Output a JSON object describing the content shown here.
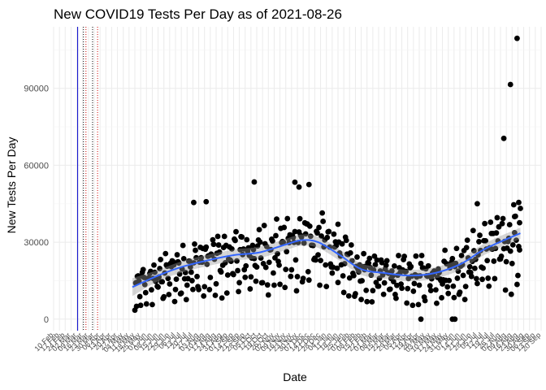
{
  "chart_data": {
    "type": "scatter",
    "title": "New COVID19 Tests Per Day as of 2021-08-26",
    "xlabel": "Date",
    "ylabel": "New Tests Per Day",
    "x_range": [
      "2020-02-10",
      "2021-09-20"
    ],
    "ylim": [
      -4500,
      114000
    ],
    "y_ticks": [
      0,
      30000,
      60000,
      90000
    ],
    "x_tick_labels": [
      "10 Feb",
      "17 Feb",
      "24 Feb",
      "02 Mar",
      "09 Mar",
      "16 Mar",
      "23 Mar",
      "30 Mar",
      "06 Apr",
      "13 Apr",
      "20 Apr",
      "27 Apr",
      "04 May",
      "11 May",
      "18 May",
      "25 May",
      "01 Jun",
      "08 Jun",
      "15 Jun",
      "22 Jun",
      "29 Jun",
      "06 Jul",
      "13 Jul",
      "20 Jul",
      "27 Jul",
      "03 Aug",
      "10 Aug",
      "17 Aug",
      "24 Aug",
      "31 Aug",
      "07 Sep",
      "14 Sep",
      "21 Sep",
      "28 Sep",
      "05 Oct",
      "12 Oct",
      "19 Oct",
      "26 Oct",
      "02 Nov",
      "09 Nov",
      "16 Nov",
      "23 Nov",
      "30 Nov",
      "07 Dec",
      "14 Dec",
      "21 Dec",
      "28 Dec",
      "04 Jan",
      "11 Jan",
      "18 Jan",
      "25 Jan",
      "01 Feb",
      "08 Feb",
      "15 Feb",
      "22 Feb",
      "01 Mar",
      "08 Mar",
      "15 Mar",
      "22 Mar",
      "29 Mar",
      "05 Apr",
      "12 Apr",
      "19 Apr",
      "26 Apr",
      "03 May",
      "10 May",
      "17 May",
      "24 May",
      "31 May",
      "07 Jun",
      "14 Jun",
      "21 Jun",
      "28 Jun",
      "05 Jul",
      "12 Jul",
      "19 Jul",
      "26 Jul",
      "02 Aug",
      "09 Aug",
      "16 Aug",
      "23 Aug",
      "30 Aug",
      "06 Sep",
      "13 Sep",
      "20 Sep"
    ],
    "grid": true,
    "vertical_lines": [
      {
        "date": "2020-03-10",
        "color": "#0000cc",
        "style": "solid"
      },
      {
        "date": "2020-03-17",
        "color": "#000000",
        "style": "dotted"
      },
      {
        "date": "2020-03-20",
        "color": "#cc0000",
        "style": "dotted"
      },
      {
        "date": "2020-03-28",
        "color": "#000000",
        "style": "dotted"
      },
      {
        "date": "2020-04-03",
        "color": "#cc0000",
        "style": "dotted"
      }
    ],
    "trend": {
      "name": "smoothed trend",
      "color": "#3366ff",
      "x": [
        "2020-05-15",
        "2020-06-15",
        "2020-07-15",
        "2020-08-15",
        "2020-09-15",
        "2020-10-15",
        "2020-11-15",
        "2020-12-05",
        "2020-12-25",
        "2021-01-20",
        "2021-02-15",
        "2021-03-15",
        "2021-04-15",
        "2021-05-15",
        "2021-06-15",
        "2021-07-15",
        "2021-08-26"
      ],
      "y": [
        12500,
        17000,
        20500,
        23000,
        25000,
        26000,
        29000,
        30800,
        30000,
        25000,
        19500,
        18000,
        17000,
        18000,
        21500,
        27500,
        33500
      ]
    },
    "series": [
      {
        "name": "New Tests Per Day",
        "color": "#000000",
        "points": []
      }
    ]
  }
}
